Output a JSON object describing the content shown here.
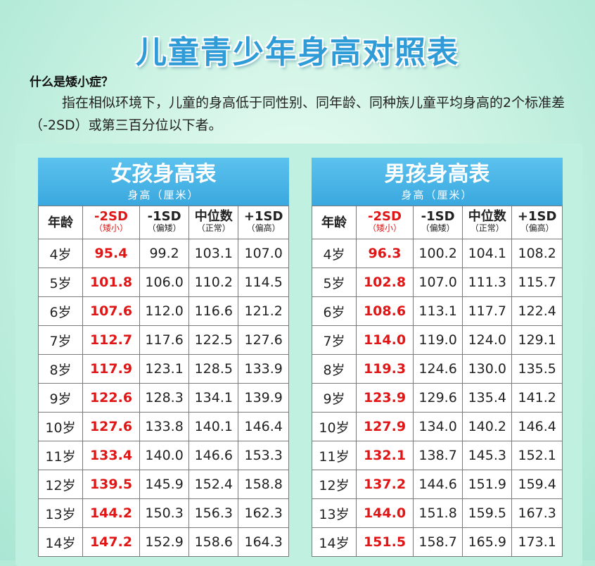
{
  "title": "儿童青少年身高对照表",
  "question": "什么是矮小症？",
  "description": "指在相似环境下，儿童的身高低于同性别、同年龄、同种族儿童平均身高的2个标准差（-2SD）或第三百分位以下者。",
  "unit_label": "身高（厘米）",
  "columns": [
    {
      "label": "年龄",
      "sub": ""
    },
    {
      "label": "-2SD",
      "sub": "（矮小）"
    },
    {
      "label": "-1SD",
      "sub": "（偏矮）"
    },
    {
      "label": "中位数",
      "sub": "（正常）"
    },
    {
      "label": "+1SD",
      "sub": "（偏高）"
    }
  ],
  "girl": {
    "title": "女孩身高表",
    "rows": [
      [
        "4岁",
        "95.4",
        "99.2",
        "103.1",
        "107.0"
      ],
      [
        "5岁",
        "101.8",
        "106.0",
        "110.2",
        "114.5"
      ],
      [
        "6岁",
        "107.6",
        "112.0",
        "116.6",
        "121.2"
      ],
      [
        "7岁",
        "112.7",
        "117.6",
        "122.5",
        "127.6"
      ],
      [
        "8岁",
        "117.9",
        "123.1",
        "128.5",
        "133.9"
      ],
      [
        "9岁",
        "122.6",
        "128.3",
        "134.1",
        "139.9"
      ],
      [
        "10岁",
        "127.6",
        "133.8",
        "140.1",
        "146.4"
      ],
      [
        "11岁",
        "133.4",
        "140.0",
        "146.6",
        "153.3"
      ],
      [
        "12岁",
        "139.5",
        "145.9",
        "152.4",
        "158.8"
      ],
      [
        "13岁",
        "144.2",
        "150.3",
        "156.3",
        "162.3"
      ],
      [
        "14岁",
        "147.2",
        "152.9",
        "158.6",
        "164.3"
      ]
    ]
  },
  "boy": {
    "title": "男孩身高表",
    "rows": [
      [
        "4岁",
        "96.3",
        "100.2",
        "104.1",
        "108.2"
      ],
      [
        "5岁",
        "102.8",
        "107.0",
        "111.3",
        "115.7"
      ],
      [
        "6岁",
        "108.6",
        "113.1",
        "117.7",
        "122.4"
      ],
      [
        "7岁",
        "114.0",
        "119.0",
        "124.0",
        "129.1"
      ],
      [
        "8岁",
        "119.3",
        "124.6",
        "130.0",
        "135.5"
      ],
      [
        "9岁",
        "123.9",
        "129.6",
        "135.4",
        "141.2"
      ],
      [
        "10岁",
        "127.9",
        "134.0",
        "140.2",
        "146.4"
      ],
      [
        "11岁",
        "132.1",
        "138.7",
        "145.3",
        "152.1"
      ],
      [
        "12岁",
        "137.2",
        "144.6",
        "151.9",
        "159.4"
      ],
      [
        "13岁",
        "144.0",
        "151.8",
        "159.5",
        "167.3"
      ],
      [
        "14岁",
        "151.5",
        "158.7",
        "165.9",
        "173.1"
      ]
    ]
  }
}
